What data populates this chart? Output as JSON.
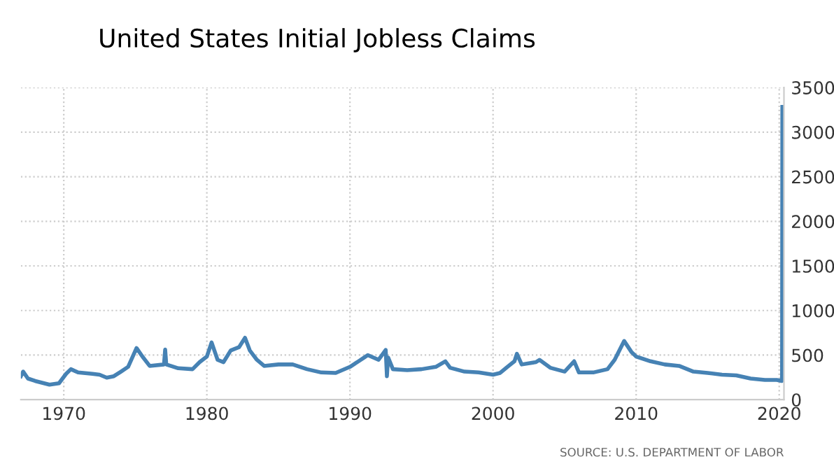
{
  "chart_data": {
    "type": "line",
    "title": "United States Initial Jobless Claims",
    "annotations": [
      "SOURCE: U.S. DEPARTMENT OF LABOR"
    ],
    "x": [
      "1967-01",
      "1967-03",
      "1967-07",
      "1968-01",
      "1969-01",
      "1969-09",
      "1970-03",
      "1970-07",
      "1971-01",
      "1972-01",
      "1972-07",
      "1973-01",
      "1973-07",
      "1974-01",
      "1974-07",
      "1975-02",
      "1975-07",
      "1976-01",
      "1977-01",
      "1977-02",
      "1977-03",
      "1978-01",
      "1979-01",
      "1979-07",
      "1980-01",
      "1980-05",
      "1980-10",
      "1981-03",
      "1981-09",
      "1982-04",
      "1982-09",
      "1983-01",
      "1983-07",
      "1984-01",
      "1985-01",
      "1986-01",
      "1987-01",
      "1988-01",
      "1989-01",
      "1990-01",
      "1991-01",
      "1991-04",
      "1992-01",
      "1992-07",
      "1992-08",
      "1992-09",
      "1993-01",
      "1994-01",
      "1995-01",
      "1996-01",
      "1996-09",
      "1997-01",
      "1998-01",
      "1999-01",
      "2000-01",
      "2000-07",
      "2001-01",
      "2001-07",
      "2001-09",
      "2002-01",
      "2003-01",
      "2003-04",
      "2004-01",
      "2005-01",
      "2005-09",
      "2006-01",
      "2007-01",
      "2008-01",
      "2008-07",
      "2009-03",
      "2009-09",
      "2010-01",
      "2011-01",
      "2012-01",
      "2013-01",
      "2014-01",
      "2015-01",
      "2016-01",
      "2017-01",
      "2018-01",
      "2019-01",
      "2019-11",
      "2020-03-07",
      "2020-03-14",
      "2020-03-21"
    ],
    "series": [
      {
        "color": "#4682b4",
        "values": [
          263,
          315,
          237,
          210,
          168,
          184,
          290,
          342,
          305,
          290,
          280,
          247,
          263,
          315,
          368,
          579,
          484,
          379,
          395,
          563,
          395,
          352,
          342,
          421,
          484,
          642,
          447,
          421,
          552,
          589,
          694,
          552,
          447,
          379,
          395,
          395,
          342,
          305,
          300,
          368,
          473,
          500,
          447,
          558,
          263,
          473,
          342,
          331,
          342,
          368,
          431,
          358,
          315,
          305,
          280,
          300,
          368,
          431,
          515,
          395,
          421,
          447,
          358,
          315,
          431,
          305,
          305,
          342,
          447,
          658,
          536,
          484,
          431,
          395,
          379,
          315,
          300,
          280,
          273,
          237,
          221,
          221,
          210,
          282,
          3283
        ]
      }
    ],
    "xlim": [
      "1967-01",
      "2020-05"
    ],
    "xticks": [
      "1970",
      "1980",
      "1990",
      "2000",
      "2010",
      "2020"
    ],
    "ylim": [
      0,
      3500
    ],
    "yticks": [
      0,
      500,
      1000,
      1500,
      2000,
      2500,
      3000,
      3500
    ],
    "grid": true,
    "marker": "none",
    "line_style": "solid"
  }
}
